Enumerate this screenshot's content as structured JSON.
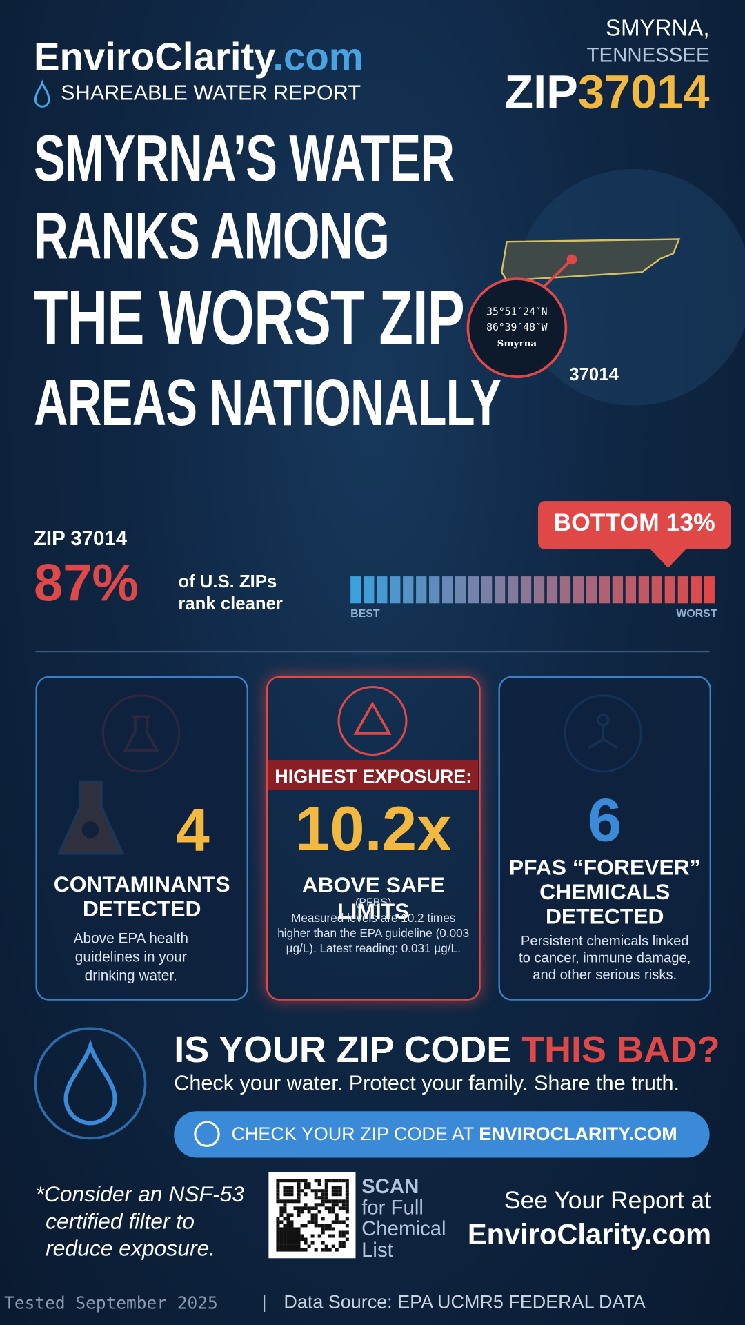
{
  "header": {
    "brand_main": "EnviroClarity",
    "brand_tld": ".com",
    "subtitle": "SHAREABLE WATER REPORT",
    "city": "SMYRNA,",
    "state": "TENNESSEE",
    "zip_prefix": "ZIP",
    "zip": "37014"
  },
  "headline": [
    "SMYRNA’S WATER",
    "RANKS AMONG",
    "THE WORST ZIP",
    "AREAS NATIONALLY"
  ],
  "map": {
    "lat": "35°51′24″N",
    "lon": "86°39′48″W",
    "place": "Smyrna",
    "zip": "37014"
  },
  "ranking": {
    "zip_label": "ZIP 37014",
    "percent": "87%",
    "text": [
      "of U.S. ZIPs",
      "rank cleaner"
    ],
    "badge_prefix": "BOTTOM",
    "badge_value": "13%",
    "best": "BEST",
    "worst": "WORST"
  },
  "cards": [
    {
      "number": "4",
      "title": [
        "CONTAMINANTS",
        "DETECTED"
      ],
      "description": [
        "Above EPA health",
        "guidelines in your",
        "drinking water."
      ]
    },
    {
      "banner": "HIGHEST EXPOSURE:",
      "number": "10.2x",
      "title": [
        "ABOVE SAFE LIMITS"
      ],
      "note": "(PFBS)",
      "description": [
        "Measured levels are 10.2 times",
        "higher than the EPA guideline (0.003",
        "µg/L). Latest reading: 0.031 µg/L."
      ]
    },
    {
      "number": "6",
      "title": [
        "PFAS “FOREVER”",
        "CHEMICALS",
        "DETECTED"
      ],
      "description": [
        "Persistent chemicals linked",
        "to cancer, immune damage,",
        "and other serious risks."
      ]
    }
  ],
  "cta": {
    "headline": "IS YOUR ZIP CODE ",
    "headline_highlight": "THIS BAD?",
    "subline": "Check your water. Protect your family. Share the truth.",
    "button": "CHECK YOUR ZIP CODE AT ",
    "button_highlight": "ENVIROCLARITY.COM"
  },
  "bottom": {
    "note": [
      "*Consider an NSF-53",
      "certified filter to",
      "reduce exposure."
    ],
    "scan": "SCAN",
    "scan_text": [
      "for Full",
      "Chemical",
      "List"
    ],
    "report": "See Your Report at",
    "report_site": "EnviroClarity.com"
  },
  "footer": {
    "tested": "Tested September 2025",
    "separator": "|",
    "source": "Data Source: EPA UCMR5 FEDERAL DATA"
  }
}
